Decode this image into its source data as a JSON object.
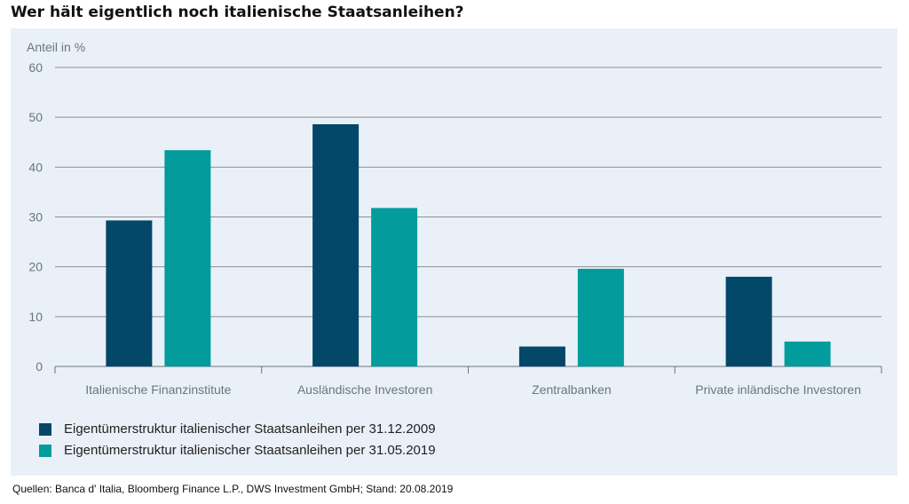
{
  "title": "Wer hält eigentlich noch italienische Staatsanleihen?",
  "source": "Quellen: Banca d' Italia, Bloomberg Finance L.P., DWS Investment GmbH; Stand: 20.08.2019",
  "colors": {
    "series1": "#034769",
    "series2": "#019c9b",
    "grid": "#8a8f96",
    "axis": "#6b7480",
    "background": "#eaf0f7"
  },
  "chart_data": {
    "type": "bar",
    "title": "Wer hält eigentlich noch italienische Staatsanleihen?",
    "ylabel": "Anteil in %",
    "xlabel": "",
    "ylim": [
      0,
      60
    ],
    "yticks": [
      0,
      10,
      20,
      30,
      40,
      50,
      60
    ],
    "grid": true,
    "legend_position": "bottom",
    "categories": [
      "Italienische Finanzinstitute",
      "Ausländische Investoren",
      "Zentralbanken",
      "Private inländische Investoren"
    ],
    "series": [
      {
        "name": "Eigentümerstruktur italienischer Staatsanleihen per 31.12.2009",
        "values": [
          29.3,
          48.6,
          4.0,
          18.0
        ]
      },
      {
        "name": "Eigentümerstruktur italienischer Staatsanleihen per 31.05.2019",
        "values": [
          43.4,
          31.8,
          19.6,
          5.0
        ]
      }
    ]
  }
}
